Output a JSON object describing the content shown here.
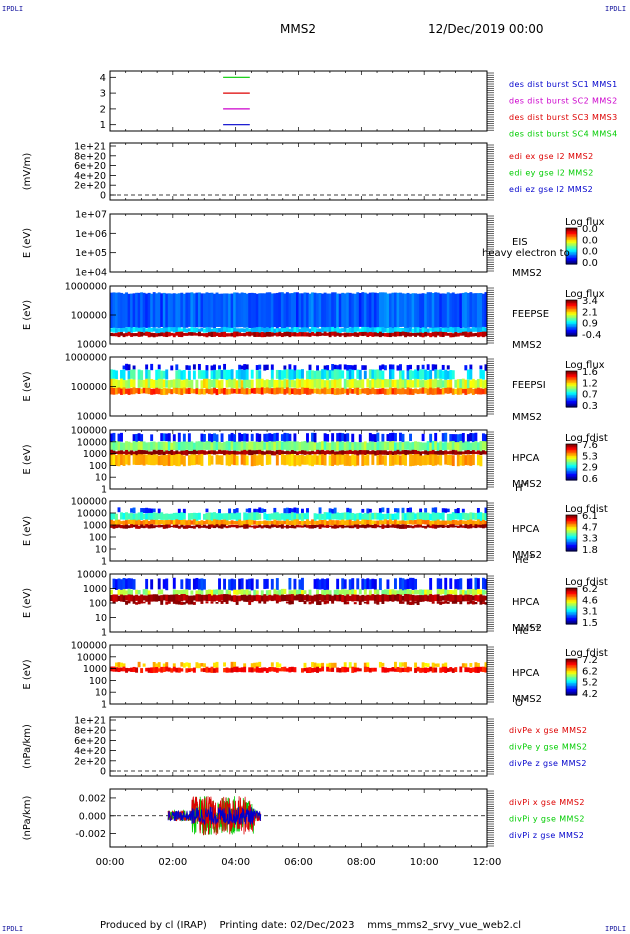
{
  "header": {
    "title": "MMS2",
    "date": "12/Dec/2019 00:00"
  },
  "corner_text": "IPDLI",
  "footer": {
    "text": "Produced by cl (IRAP)    Printing date: 02/Dec/2023    mms_mms2_srvy_vue_web2.cl"
  },
  "x_ticks": [
    "00:00",
    "02:00",
    "04:00",
    "06:00",
    "08:00",
    "10:00",
    "12:00"
  ],
  "colors": {
    "red": "#dd0000",
    "green": "#00cc00",
    "blue": "#0000cc",
    "magenta": "#cc00cc"
  },
  "chart_data": [
    {
      "type": "line",
      "ylabel": "",
      "yticks": [
        "1",
        "2",
        "3",
        "4"
      ],
      "ylim": [
        0.6,
        4.4
      ],
      "legend": [
        {
          "text": "des dist burst SC1 MMS1",
          "color": "#0000cc"
        },
        {
          "text": "des dist burst SC2 MMS2",
          "color": "#cc00cc"
        },
        {
          "text": "des dist burst SC3 MMS3",
          "color": "#dd0000"
        },
        {
          "text": "des dist burst SC4 MMS4",
          "color": "#00cc00"
        }
      ],
      "series": [
        {
          "level": 4,
          "color": "#00cc00",
          "x": [
            3.6,
            4.45
          ]
        },
        {
          "level": 3,
          "color": "#dd0000",
          "x": [
            3.6,
            4.45
          ]
        },
        {
          "level": 2,
          "color": "#cc00cc",
          "x": [
            3.6,
            4.45
          ]
        },
        {
          "level": 1,
          "color": "#0000cc",
          "x": [
            3.6,
            4.45
          ]
        }
      ]
    },
    {
      "type": "line",
      "ylabel": "(mV/m)",
      "yticks": [
        "0",
        "2e+20",
        "4e+20",
        "6e+20",
        "8e+20",
        "1e+21"
      ],
      "ylim": [
        0,
        1e+21
      ],
      "zero_line": true,
      "legend": [
        {
          "text": "edi ex gse l2 MMS2",
          "color": "#dd0000"
        },
        {
          "text": "edi ey gse l2 MMS2",
          "color": "#00cc00"
        },
        {
          "text": "edi ez gse l2 MMS2",
          "color": "#0000cc"
        }
      ]
    },
    {
      "type": "heatmap",
      "ylabel": "E (eV)",
      "yticks": [
        "1e+04",
        "1e+05",
        "1e+06",
        "1e+07"
      ],
      "labels": [
        "EIS",
        "MMS2"
      ],
      "overlay_text": "heavy electron to",
      "colorbar": {
        "title": "Log flux",
        "ticks": [
          "0.0",
          "0.0",
          "0.0",
          "0.0"
        ]
      }
    },
    {
      "type": "heatmap",
      "ylabel": "E (eV)",
      "yticks": [
        "10000",
        "100000",
        "1000000"
      ],
      "labels": [
        "FEEPSE",
        "MMS2"
      ],
      "colorbar": {
        "title": "Log flux",
        "ticks": [
          "3.4",
          "2.1",
          "0.9",
          "-0.4"
        ]
      }
    },
    {
      "type": "heatmap",
      "ylabel": "E (eV)",
      "yticks": [
        "10000",
        "100000",
        "1000000"
      ],
      "labels": [
        "FEEPSI",
        "MMS2"
      ],
      "colorbar": {
        "title": "Log flux",
        "ticks": [
          "1.6",
          "1.2",
          "0.7",
          "0.3"
        ]
      }
    },
    {
      "type": "heatmap",
      "ylabel": "E (eV)",
      "yticks": [
        "1",
        "10",
        "100",
        "1000",
        "10000",
        "100000"
      ],
      "labels": [
        "HPCA",
        "MMS2",
        "H+"
      ],
      "colorbar": {
        "title": "Log fdist",
        "ticks": [
          "7.6",
          "5.3",
          "2.9",
          "0.6"
        ]
      }
    },
    {
      "type": "heatmap",
      "ylabel": "E (eV)",
      "yticks": [
        "1",
        "10",
        "100",
        "1000",
        "10000",
        "100000"
      ],
      "labels": [
        "HPCA",
        "MMS2",
        "He+"
      ],
      "colorbar": {
        "title": "Log fdist",
        "ticks": [
          "6.1",
          "4.7",
          "3.3",
          "1.8"
        ]
      }
    },
    {
      "type": "heatmap",
      "ylabel": "E (eV)",
      "yticks": [
        "1",
        "10",
        "100",
        "1000",
        "10000"
      ],
      "labels": [
        "HPCA",
        "MMS2",
        "He++"
      ],
      "colorbar": {
        "title": "Log fdist",
        "ticks": [
          "6.2",
          "4.6",
          "3.1",
          "1.5"
        ]
      }
    },
    {
      "type": "heatmap",
      "ylabel": "E (eV)",
      "yticks": [
        "1",
        "10",
        "100",
        "1000",
        "10000",
        "100000"
      ],
      "labels": [
        "HPCA",
        "MMS2",
        "O+"
      ],
      "colorbar": {
        "title": "Log fdist",
        "ticks": [
          "7.2",
          "6.2",
          "5.2",
          "4.2"
        ]
      }
    },
    {
      "type": "line",
      "ylabel": "(nPa/km)",
      "yticks": [
        "0",
        "2e+20",
        "4e+20",
        "6e+20",
        "8e+20",
        "1e+21"
      ],
      "ylim": [
        0,
        1e+21
      ],
      "zero_line": true,
      "legend": [
        {
          "text": "divPe x gse MMS2",
          "color": "#dd0000"
        },
        {
          "text": "divPe y gse MMS2",
          "color": "#00cc00"
        },
        {
          "text": "divPe z gse MMS2",
          "color": "#0000cc"
        }
      ]
    },
    {
      "type": "line",
      "ylabel": "(nPa/km)",
      "yticks": [
        "-0.002",
        "0.000",
        "0.002"
      ],
      "ylim": [
        -0.0035,
        0.003
      ],
      "zero_line": true,
      "data_range_hours": [
        1.85,
        4.8
      ],
      "legend": [
        {
          "text": "divPi x gse MMS2",
          "color": "#dd0000"
        },
        {
          "text": "divPi y gse MMS2",
          "color": "#00cc00"
        },
        {
          "text": "divPi z gse MMS2",
          "color": "#0000cc"
        }
      ]
    }
  ]
}
